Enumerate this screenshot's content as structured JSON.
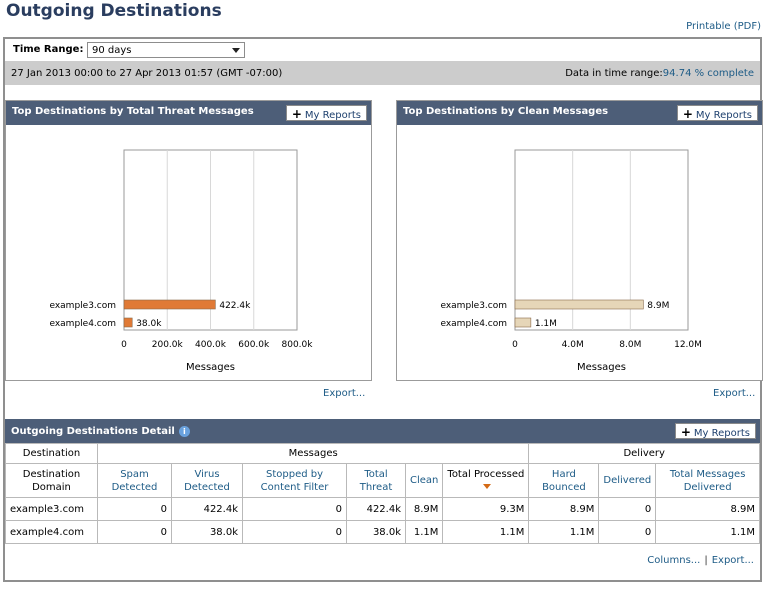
{
  "page": {
    "title": "Outgoing Destinations",
    "printable_label": "Printable (PDF)"
  },
  "time_range": {
    "label": "Time Range:",
    "selected": "90 days",
    "range_text": "27 Jan 2013 00:00 to 27 Apr 2013 01:57 (GMT -07:00)",
    "data_label": "Data in time range:",
    "data_pct": "94.74 % complete"
  },
  "panels": {
    "threat": {
      "title": "Top Destinations by Total Threat Messages",
      "my_reports": "My Reports",
      "export": "Export..."
    },
    "clean": {
      "title": "Top Destinations by Clean Messages",
      "my_reports": "My Reports",
      "export": "Export..."
    }
  },
  "chart_data": [
    {
      "type": "bar",
      "orientation": "horizontal",
      "title": "Top Destinations by Total Threat Messages",
      "categories": [
        "example3.com",
        "example4.com"
      ],
      "values": [
        422400,
        38000
      ],
      "value_labels": [
        "422.4k",
        "38.0k"
      ],
      "xlabel": "Messages",
      "xticks": [
        "0",
        "200.0k",
        "400.0k",
        "600.0k",
        "800.0k"
      ],
      "xlim": [
        0,
        800000
      ],
      "bar_color": "#e07a36"
    },
    {
      "type": "bar",
      "orientation": "horizontal",
      "title": "Top Destinations by Clean Messages",
      "categories": [
        "example3.com",
        "example4.com"
      ],
      "values": [
        8900000,
        1100000
      ],
      "value_labels": [
        "8.9M",
        "1.1M"
      ],
      "xlabel": "Messages",
      "xticks": [
        "0",
        "4.0M",
        "8.0M",
        "12.0M"
      ],
      "xlim": [
        0,
        12000000
      ],
      "bar_color": "#e6d6b8"
    }
  ],
  "detail": {
    "title": "Outgoing Destinations Detail",
    "info_icon": "i",
    "my_reports": "My Reports",
    "group_headers": {
      "destination": "Destination",
      "messages": "Messages",
      "delivery": "Delivery"
    },
    "columns": {
      "domain": "Destination Domain",
      "spam": "Spam Detected",
      "virus": "Virus Detected",
      "stopped": "Stopped by Content Filter",
      "total_threat": "Total Threat",
      "clean": "Clean",
      "total_processed": "Total Processed",
      "hard_bounced": "Hard Bounced",
      "delivered": "Delivered",
      "total_delivered": "Total Messages Delivered"
    },
    "rows": [
      {
        "domain": "example3.com",
        "spam": "0",
        "virus": "422.4k",
        "stopped": "0",
        "total_threat": "422.4k",
        "clean": "8.9M",
        "total_processed": "9.3M",
        "hard_bounced": "8.9M",
        "delivered": "0",
        "total_delivered": "8.9M"
      },
      {
        "domain": "example4.com",
        "spam": "0",
        "virus": "38.0k",
        "stopped": "0",
        "total_threat": "38.0k",
        "clean": "1.1M",
        "total_processed": "1.1M",
        "hard_bounced": "1.1M",
        "delivered": "0",
        "total_delivered": "1.1M"
      }
    ],
    "columns_link": "Columns...",
    "export_link": "Export..."
  }
}
